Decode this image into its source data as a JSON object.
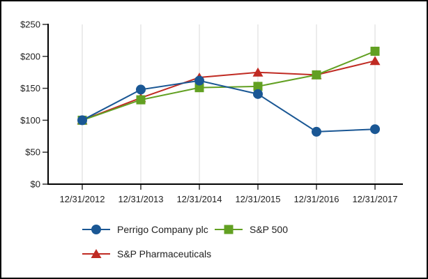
{
  "window": {
    "background": "#FFFFFF",
    "border_color": "#000000",
    "text_color": "#212121"
  },
  "chart_data": {
    "type": "line",
    "title": "",
    "xlabel": "",
    "ylabel": "",
    "x_labels": [
      "12/31/2012",
      "12/31/2013",
      "12/31/2014",
      "12/31/2015",
      "12/31/2016",
      "12/31/2017"
    ],
    "series": [
      {
        "name": "Perrigo Company plc",
        "marker": "circle",
        "color": "#1A5794",
        "values": [
          100,
          148,
          162,
          141,
          82,
          86
        ]
      },
      {
        "name": "S&P 500",
        "marker": "square",
        "color": "#62A022",
        "values": [
          100,
          132,
          151,
          153,
          171,
          208
        ]
      },
      {
        "name": "S&P Pharmaceuticals",
        "marker": "triangle",
        "color": "#C02B23",
        "values": [
          100,
          135,
          167,
          175,
          171,
          193
        ]
      }
    ],
    "ylim": [
      0,
      250
    ],
    "ytick_step": 50,
    "ytick_labels": [
      "$0",
      "$50",
      "$100",
      "$150",
      "$200",
      "$250"
    ],
    "currency_prefix": "$",
    "grid": "vertical-only",
    "gridline_color": "#D9D9D9",
    "axis_color": "#000000",
    "tick_color": "#333333",
    "legend_position": "bottom-left",
    "draw_order_back_to_front": [
      "S&P Pharmaceuticals",
      "S&P 500",
      "Perrigo Company plc"
    ]
  }
}
